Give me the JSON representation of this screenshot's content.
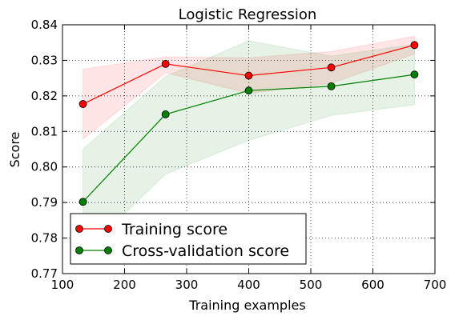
{
  "chart_data": {
    "type": "line",
    "title": "Logistic Regression",
    "xlabel": "Training examples",
    "ylabel": "Score",
    "xlim": [
      100,
      700
    ],
    "ylim": [
      0.77,
      0.84
    ],
    "xticks": [
      "100",
      "200",
      "300",
      "400",
      "500",
      "600",
      "700"
    ],
    "yticks": [
      "0.77",
      "0.78",
      "0.79",
      "0.80",
      "0.81",
      "0.82",
      "0.83",
      "0.84"
    ],
    "grid": true,
    "legend_position": "lower-left",
    "x": [
      133,
      266,
      400,
      533,
      667
    ],
    "series": [
      {
        "name": "Training score",
        "color": "#ff0000",
        "fill_color": "#ff0000",
        "values": [
          0.8177,
          0.829,
          0.8257,
          0.828,
          0.8343
        ],
        "upper": [
          0.8275,
          0.831,
          0.8307,
          0.8325,
          0.8368
        ],
        "lower": [
          0.8078,
          0.8265,
          0.8207,
          0.8235,
          0.8318
        ]
      },
      {
        "name": "Cross-validation score",
        "color": "#008000",
        "fill_color": "#008000",
        "values": [
          0.7902,
          0.8148,
          0.8215,
          0.8227,
          0.826
        ],
        "upper": [
          0.805,
          0.8255,
          0.8355,
          0.8312,
          0.8345
        ],
        "lower": [
          0.7755,
          0.798,
          0.8075,
          0.8145,
          0.8175
        ]
      }
    ]
  }
}
